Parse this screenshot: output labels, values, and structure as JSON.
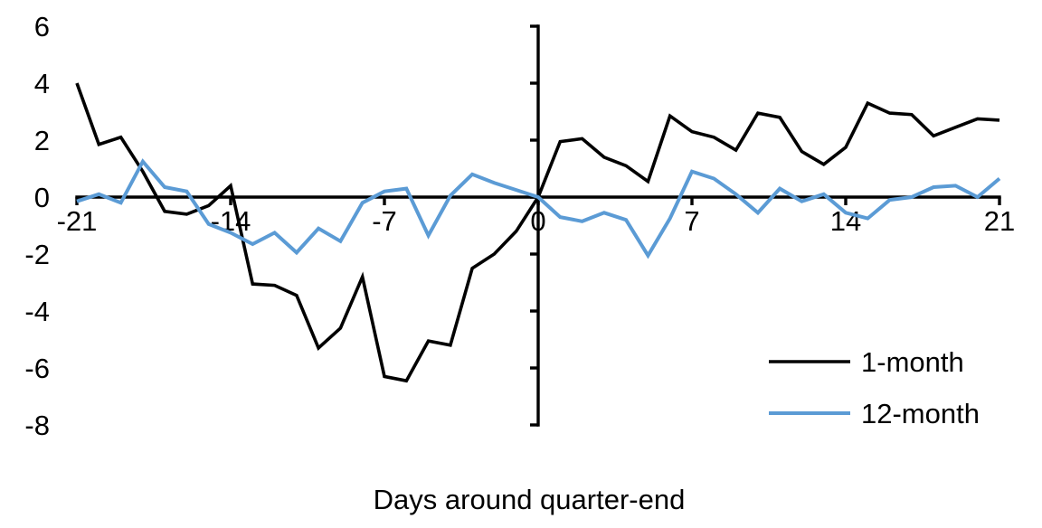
{
  "chart_data": {
    "type": "line",
    "title": "",
    "xlabel": "Days around quarter-end",
    "ylabel": "",
    "xlim": [
      -21,
      21
    ],
    "ylim": [
      -8,
      6
    ],
    "xticks": [
      -21,
      -14,
      -7,
      0,
      7,
      14,
      21
    ],
    "yticks": [
      6,
      4,
      2,
      0,
      -2,
      -4,
      -6,
      -8
    ],
    "grid": false,
    "legend_position": "inside-bottom-right",
    "x": [
      -21,
      -20,
      -19,
      -18,
      -17,
      -16,
      -15,
      -14,
      -13,
      -12,
      -11,
      -10,
      -9,
      -8,
      -7,
      -6,
      -5,
      -4,
      -3,
      -2,
      -1,
      0,
      1,
      2,
      3,
      4,
      5,
      6,
      7,
      8,
      9,
      10,
      11,
      12,
      13,
      14,
      15,
      16,
      17,
      18,
      19,
      20,
      21
    ],
    "series": [
      {
        "name": "1-month",
        "color": "#000000",
        "values": [
          4.0,
          1.85,
          2.1,
          0.9,
          -0.5,
          -0.6,
          -0.3,
          0.4,
          -3.05,
          -3.1,
          -3.45,
          -5.3,
          -4.6,
          -2.8,
          -6.3,
          -6.45,
          -5.05,
          -5.2,
          -2.5,
          -2.0,
          -1.2,
          0.0,
          1.95,
          2.05,
          1.4,
          1.1,
          0.55,
          2.85,
          2.3,
          2.1,
          1.65,
          2.95,
          2.8,
          1.6,
          1.15,
          1.75,
          3.3,
          2.95,
          2.9,
          2.15,
          2.45,
          2.75,
          2.7
        ]
      },
      {
        "name": "12-month",
        "color": "#5B9BD5",
        "values": [
          -0.15,
          0.1,
          -0.2,
          1.25,
          0.35,
          0.2,
          -0.95,
          -1.25,
          -1.65,
          -1.25,
          -1.95,
          -1.1,
          -1.55,
          -0.2,
          0.2,
          0.3,
          -1.35,
          0.05,
          0.8,
          0.5,
          0.25,
          0.0,
          -0.7,
          -0.85,
          -0.55,
          -0.8,
          -2.05,
          -0.75,
          0.9,
          0.65,
          0.1,
          -0.55,
          0.3,
          -0.15,
          0.1,
          -0.55,
          -0.75,
          -0.1,
          0.0,
          0.35,
          0.4,
          0.0,
          0.65
        ]
      }
    ]
  },
  "legend": {
    "items": [
      {
        "label": "1-month",
        "color": "#000000"
      },
      {
        "label": "12-month",
        "color": "#5B9BD5"
      }
    ]
  }
}
